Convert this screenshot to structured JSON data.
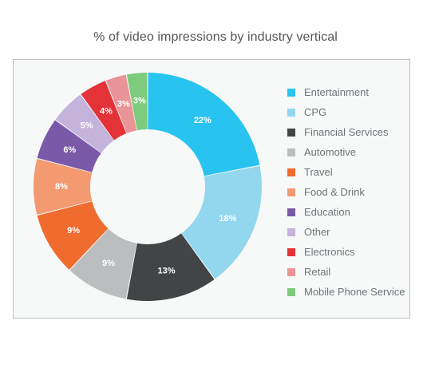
{
  "chart_data": {
    "type": "pie",
    "title": "% of video impressions by industry vertical",
    "hole": true,
    "legend_position": "right",
    "categories": [
      "Entertainment",
      "CPG",
      "Financial Services",
      "Automotive",
      "Travel",
      "Food & Drink",
      "Education",
      "Other",
      "Electronics",
      "Retail",
      "Mobile Phone Service"
    ],
    "values": [
      22,
      18,
      13,
      9,
      9,
      8,
      6,
      5,
      4,
      3,
      3
    ],
    "labels": [
      "22%",
      "18%",
      "13%",
      "9%",
      "9%",
      "8%",
      "6%",
      "5%",
      "4%",
      "3%",
      "3%"
    ],
    "colors": [
      "#29c3f0",
      "#93d7ef",
      "#424446",
      "#bcbdbf",
      "#ef6b2e",
      "#f49a71",
      "#7b59a9",
      "#c4b3da",
      "#e43239",
      "#e99496",
      "#7dcb7c"
    ]
  }
}
